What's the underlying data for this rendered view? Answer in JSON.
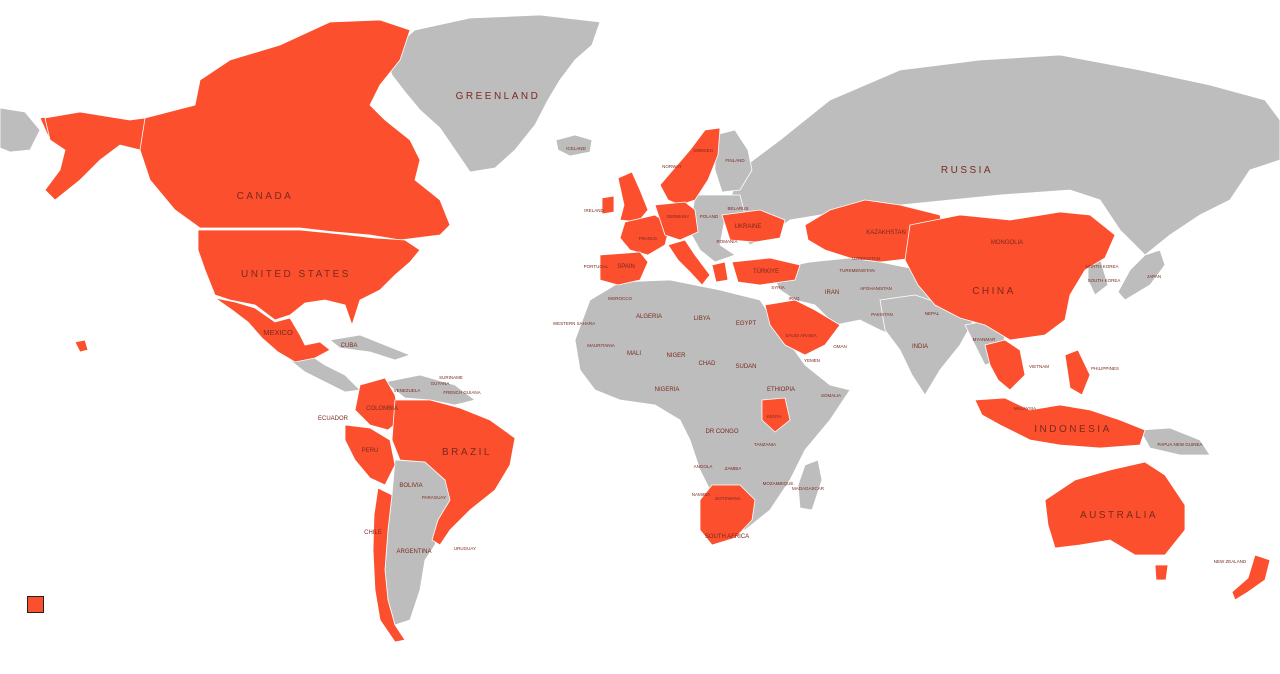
{
  "map": {
    "colors": {
      "highlight": "#fb4f2d",
      "land": "#bdbdbd",
      "label": "#7a2a1f",
      "background": "#ffffff"
    },
    "highlighted": [
      "Canada",
      "United States",
      "Mexico",
      "Brazil",
      "Colombia",
      "Peru",
      "Chile",
      "Argentina",
      "United Kingdom",
      "Ireland",
      "France",
      "Spain",
      "Portugal",
      "Italy",
      "Germany",
      "Belgium",
      "Netherlands",
      "Denmark",
      "Norway",
      "Sweden",
      "Switzerland",
      "Austria",
      "Czechia",
      "Ukraine",
      "Greece",
      "Türkiye",
      "Kazakhstan",
      "China",
      "Mongolia",
      "Saudi Arabia",
      "United Arab Emirates",
      "Kenya",
      "South Africa",
      "Thailand",
      "Vietnam",
      "Malaysia",
      "Indonesia",
      "Philippines",
      "Australia",
      "New Zealand",
      "Japan"
    ],
    "labels": {
      "greenland": "GREENLAND",
      "russia": "RUSSIA",
      "canada": "CANADA",
      "united_states": "UNITED STATES",
      "mexico": "MEXICO",
      "cuba": "CUBA",
      "venezuela": "VENEZUELA",
      "guyana": "GUYANA",
      "suriname": "SURINAME",
      "french_guiana": "FRENCH GUIANA",
      "colombia": "COLOMBIA",
      "ecuador": "ECUADOR",
      "peru": "PERU",
      "brazil": "BRAZIL",
      "bolivia": "BOLIVIA",
      "paraguay": "PARAGUAY",
      "chile": "CHILE",
      "argentina": "ARGENTINA",
      "uruguay": "URUGUAY",
      "iceland": "ICELAND",
      "ireland": "IRELAND",
      "portugal": "PORTUGAL",
      "spain": "SPAIN",
      "france": "FRANCE",
      "germany": "GERMANY",
      "poland": "POLAND",
      "belarus": "BELARUS",
      "ukraine": "UKRAINE",
      "romania": "ROMANIA",
      "norway": "NORWAY",
      "sweden": "SWEDEN",
      "finland": "FINLAND",
      "turkiye": "TÜRKIYE",
      "syria": "SYRIA",
      "iraq": "IRAQ",
      "iran": "IRAN",
      "morocco": "MOROCCO",
      "western_sahara": "WESTERN SAHARA",
      "algeria": "ALGERIA",
      "libya": "LIBYA",
      "egypt": "EGYPT",
      "mauritania": "MAURITANIA",
      "mali": "MALI",
      "niger": "NIGER",
      "chad": "CHAD",
      "sudan": "SUDAN",
      "nigeria": "NIGERIA",
      "ethiopia": "ETHIOPIA",
      "somalia": "SOMALIA",
      "kenya": "KENYA",
      "dr_congo": "DR CONGO",
      "tanzania": "TANZANIA",
      "angola": "ANGOLA",
      "zambia": "ZAMBIA",
      "namibia": "NAMIBIA",
      "botswana": "BOTSWANA",
      "madagascar": "MADAGASCAR",
      "mozambique": "MOZAMBIQUE",
      "south_africa": "SOUTH AFRICA",
      "saudi_arabia": "SAUDI ARABIA",
      "yemen": "YEMEN",
      "oman": "OMAN",
      "kazakhstan": "KAZAKHSTAN",
      "uzbekistan": "UZBEKISTAN",
      "turkmenistan": "TURKMENISTAN",
      "afghanistan": "AFGHANISTAN",
      "pakistan": "PAKISTAN",
      "india": "INDIA",
      "nepal": "NEPAL",
      "myanmar": "MYANMAR",
      "mongolia": "MONGOLIA",
      "china": "CHINA",
      "north_korea": "NORTH KOREA",
      "south_korea": "SOUTH KOREA",
      "japan": "JAPAN",
      "vietnam": "VIETNAM",
      "philippines": "PHILIPPINES",
      "malaysia": "MALAYSIA",
      "indonesia": "INDONESIA",
      "papua_new_guinea": "PAPUA NEW GUINEA",
      "australia": "AUSTRALIA",
      "new_zealand": "NEW ZEALAND"
    }
  }
}
